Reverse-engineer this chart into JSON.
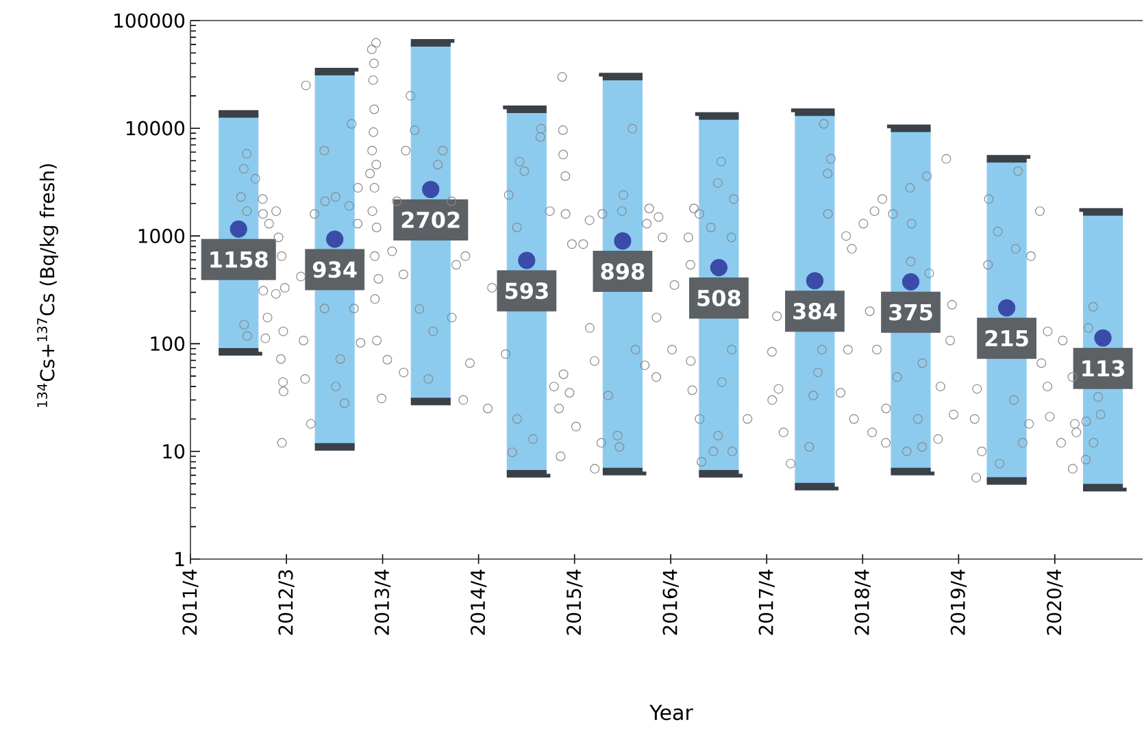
{
  "chart_data": {
    "type": "bar",
    "xlabel": "Year",
    "ylabel": "$^{134}$Cs+$^{137}$Cs (Bq/kg fresh)",
    "log": true,
    "xlim": [
      "2011-04-01",
      "2021-03-01"
    ],
    "xticks": [
      {
        "value": "2011-04-01",
        "label": "2011/4"
      },
      {
        "value": "2012-03-31",
        "label": "2012/3"
      },
      {
        "value": "2013-04-01",
        "label": "2013/4"
      },
      {
        "value": "2014-04-01",
        "label": "2014/4"
      },
      {
        "value": "2015-04-01",
        "label": "2015/4"
      },
      {
        "value": "2016-04-01",
        "label": "2016/4"
      },
      {
        "value": "2017-04-01",
        "label": "2017/4"
      },
      {
        "value": "2018-04-01",
        "label": "2018/4"
      },
      {
        "value": "2019-04-01",
        "label": "2019/4"
      },
      {
        "value": "2020-04-01",
        "label": "2020/4"
      }
    ],
    "ylim": [
      1,
      100000
    ],
    "yticks": [
      1,
      10,
      100,
      1000,
      10000,
      100000
    ],
    "series": [
      {
        "color": "#8ccbee",
        "x": [
          "2011-10",
          "2012-10",
          "2013-10",
          "2014-10",
          "2015-10",
          "2016-10",
          "2017-10",
          "2018-10",
          "2019-10",
          "2020-10"
        ],
        "base": [
          84,
          11,
          29,
          6.2,
          6.5,
          6.2,
          4.7,
          6.5,
          5.3,
          4.6
        ],
        "values": [
          13500,
          33600,
          62000,
          15000,
          30200,
          13000,
          14100,
          10000,
          5200,
          1670
        ]
      },
      {
        "type": "scatter",
        "color": "#8a8a8a",
        "marker": "circle",
        "x": [
          "2011-11-01",
          "2011-10-21",
          "2011-12-04",
          "2011-10-10",
          "2011-11-02",
          "2012-01-01",
          "2012-01-02",
          "2012-02-21",
          "2012-01-25",
          "2012-03-01",
          "2012-03-13",
          "2012-03-25",
          "2012-01-03",
          "2012-02-20",
          "2012-01-19",
          "2012-03-19",
          "2012-01-11",
          "2012-03-10",
          "2012-03-18",
          "2012-03-20",
          "2012-03-14",
          "2011-11-03",
          "2011-10-22",
          "2012-06-13",
          "2012-12-04",
          "2012-08-22",
          "2012-08-25",
          "2012-07-16",
          "2012-10-04",
          "2012-11-25",
          "2012-12-28",
          "2012-12-27",
          "2012-05-25",
          "2012-06-04",
          "2012-06-10",
          "2012-07-02",
          "2012-10-05",
          "2012-11-07",
          "2012-10-22",
          "2013-01-07",
          "2012-12-13",
          "2012-08-23",
          "2013-03-07",
          "2013-02-19",
          "2013-02-27",
          "2013-02-24",
          "2013-02-28",
          "2013-02-25",
          "2013-02-20",
          "2013-03-08",
          "2013-02-12",
          "2013-03-01",
          "2013-02-21",
          "2013-03-09",
          "2013-03-02",
          "2013-03-16",
          "2013-03-03",
          "2013-03-10",
          "2013-07-16",
          "2013-08-01",
          "2013-06-28",
          "2013-11-16",
          "2013-10-28",
          "2013-05-25",
          "2013-12-19",
          "2013-05-07",
          "2014-02-10",
          "2013-06-19",
          "2014-01-06",
          "2014-05-22",
          "2013-08-19",
          "2013-10-10",
          "2013-09-22",
          "2013-06-20",
          "2014-02-02",
          "2014-05-06",
          "2013-12-20",
          "2014-02-27",
          "2013-04-19",
          "2013-03-28",
          "2014-11-25",
          "2014-11-22",
          "2014-09-04",
          "2014-09-22",
          "2014-07-25",
          "2014-08-25",
          "2015-02-13",
          "2015-02-16",
          "2015-02-17",
          "2015-02-25",
          "2015-02-26",
          "2014-12-28",
          "2015-03-22",
          "2015-05-04",
          "2015-05-28",
          "2014-07-13",
          "2014-08-26",
          "2014-08-07",
          "2014-10-25",
          "2015-02-07",
          "2015-02-01",
          "2015-03-13",
          "2015-04-07",
          "2015-01-13",
          "2015-02-18",
          "2015-11-07",
          "2015-10-04",
          "2015-09-28",
          "2015-07-16",
          "2016-01-10",
          "2016-01-01",
          "2016-02-15",
          "2016-03-01",
          "2016-04-15",
          "2015-05-29",
          "2015-06-16",
          "2015-07-12",
          "2015-06-17",
          "2015-09-12",
          "2015-09-19",
          "2015-11-19",
          "2015-12-24",
          "2016-02-06",
          "2016-02-07",
          "2016-04-06",
          "2015-08-07",
          "2016-10-10",
          "2016-09-27",
          "2016-11-27",
          "2016-07-19",
          "2016-09-01",
          "2016-11-18",
          "2016-06-28",
          "2016-06-07",
          "2016-06-15",
          "2016-06-16",
          "2016-06-22",
          "2016-07-20",
          "2016-07-27",
          "2016-09-10",
          "2016-10-13",
          "2016-11-19",
          "2017-01-18",
          "2016-11-21",
          "2016-09-28",
          "2017-05-10",
          "2017-04-21",
          "2017-04-22",
          "2017-06-04",
          "2017-07-01",
          "2017-05-16",
          "2017-09-25",
          "2017-09-10",
          "2017-10-13",
          "2017-12-01",
          "2017-11-19",
          "2017-11-20",
          "2017-11-04",
          "2018-01-28",
          "2018-04-04",
          "2018-05-16",
          "2018-06-15",
          "2018-02-19",
          "2018-04-28",
          "2018-05-25",
          "2018-05-07",
          "2018-06-28",
          "2018-02-27",
          "2018-02-04",
          "2018-01-07",
          "2017-10-28",
          "2019-02-13",
          "2018-12-01",
          "2018-09-28",
          "2018-10-04",
          "2018-10-01",
          "2018-12-10",
          "2018-07-25",
          "2019-03-07",
          "2019-02-28",
          "2019-01-22",
          "2019-03-13",
          "2019-01-13",
          "2018-11-13",
          "2018-09-16",
          "2018-06-29",
          "2018-08-10",
          "2018-10-28",
          "2018-11-14",
          "2019-11-13",
          "2019-07-25",
          "2019-08-28",
          "2019-11-04",
          "2020-02-04",
          "2020-01-01",
          "2019-07-22",
          "2019-06-10",
          "2019-06-01",
          "2019-06-28",
          "2019-06-07",
          "2019-09-04",
          "2019-12-01",
          "2019-12-25",
          "2019-10-28",
          "2020-02-10",
          "2020-03-04",
          "2020-03-13",
          "2020-03-05",
          "2020-05-01",
          "2020-06-07",
          "2020-06-16",
          "2020-06-22",
          "2020-06-08",
          "2020-04-25",
          "2020-07-28",
          "2020-07-29",
          "2020-09-22",
          "2020-09-13",
          "2020-08-25",
          "2020-08-07",
          "2020-08-26"
        ],
        "values": [
          5800,
          4200,
          3400,
          2300,
          1700,
          2200,
          1600,
          1700,
          1300,
          970,
          650,
          330,
          310,
          290,
          175,
          130,
          112,
          72,
          44,
          36,
          12,
          118,
          150,
          25000,
          11000,
          6200,
          2100,
          1600,
          2300,
          1900,
          2800,
          1300,
          420,
          107,
          47,
          18,
          40,
          28,
          72,
          102,
          212,
          212,
          62000,
          54000,
          40000,
          28000,
          15000,
          9200,
          6200,
          4600,
          3800,
          2800,
          1700,
          1200,
          650,
          400,
          260,
          107,
          20000,
          9600,
          6200,
          6200,
          4600,
          2100,
          2100,
          720,
          650,
          440,
          540,
          330,
          210,
          130,
          47,
          54,
          30,
          25,
          175,
          66,
          71,
          31,
          9900,
          8300,
          4900,
          4000,
          2400,
          1200,
          30000,
          9600,
          5700,
          3600,
          1600,
          1700,
          840,
          840,
          1400,
          80,
          20,
          9.8,
          13,
          9,
          25,
          35,
          17,
          40,
          52,
          9900,
          2400,
          1700,
          1600,
          1800,
          1300,
          1500,
          970,
          350,
          140,
          69,
          12,
          6.9,
          14,
          11,
          88,
          63,
          49,
          175,
          88,
          33,
          4900,
          3100,
          2200,
          1600,
          1200,
          970,
          1800,
          970,
          540,
          69,
          37,
          20,
          8,
          10,
          44,
          88,
          20,
          10,
          14,
          180,
          84,
          30,
          15,
          7.7,
          38,
          33,
          11,
          54,
          5200,
          3800,
          1600,
          11000,
          1000,
          1300,
          1700,
          2200,
          760,
          200,
          88,
          15,
          12,
          20,
          88,
          35,
          88,
          5200,
          3600,
          2800,
          1300,
          580,
          450,
          1600,
          230,
          107,
          40,
          22,
          13,
          11,
          10,
          25,
          49,
          20,
          66,
          4000,
          2200,
          1100,
          760,
          1700,
          650,
          540,
          38,
          20,
          10,
          5.7,
          7.7,
          12,
          18,
          30,
          66,
          40,
          21,
          130,
          107,
          49,
          18,
          15,
          6.9,
          12,
          8.4,
          19,
          22,
          32,
          220,
          140,
          12
        ]
      },
      {
        "type": "scatter",
        "color": "#3a4ba8",
        "marker": "circle",
        "data_labels": true,
        "x": [
          "2011-10",
          "2012-10",
          "2013-10",
          "2014-10",
          "2015-10",
          "2016-10",
          "2017-10",
          "2018-10",
          "2019-10",
          "2020-10"
        ],
        "values": [
          1158,
          934,
          2702,
          593,
          898,
          508,
          384,
          375,
          215,
          113
        ]
      }
    ]
  }
}
